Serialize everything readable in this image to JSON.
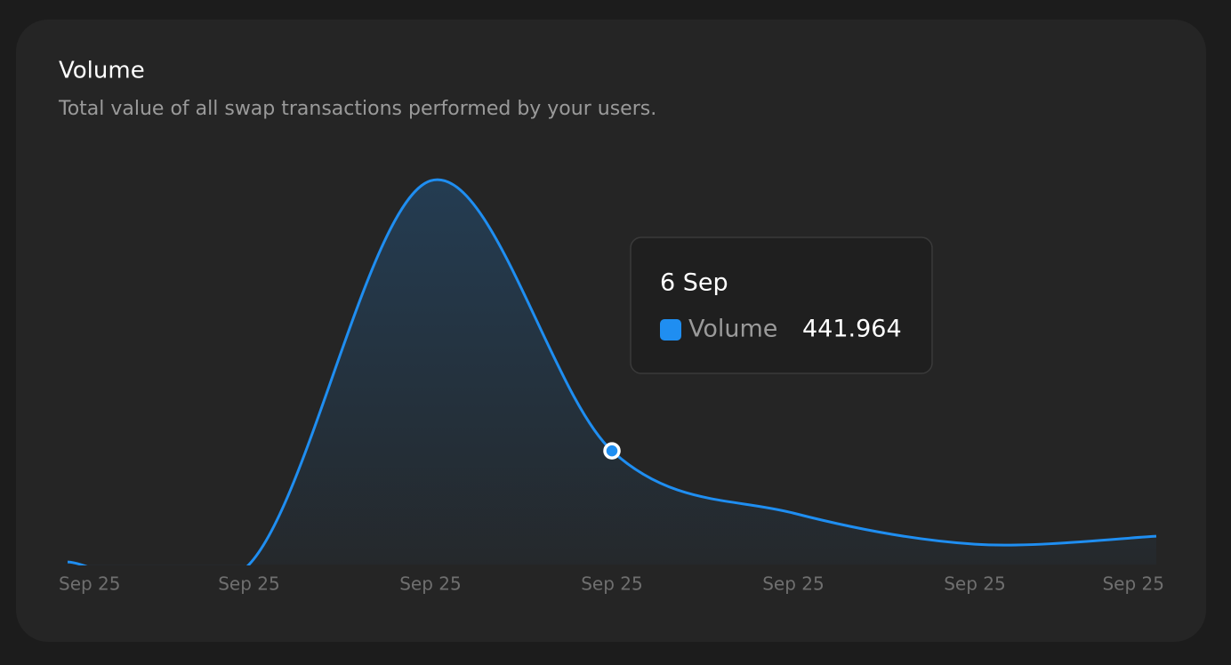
{
  "chart_data": {
    "type": "area",
    "title": "Volume",
    "subtitle": "Total value of all swap transactions performed by your users.",
    "categories": [
      "Sep 25",
      "Sep 25",
      "Sep 25",
      "Sep 25",
      "Sep 25",
      "Sep 25",
      "Sep 25"
    ],
    "series": [
      {
        "name": "Volume",
        "color": "#1f8ef1",
        "values": [
          10,
          0,
          1492,
          441.964,
          200,
          79,
          110
        ]
      }
    ],
    "ylim": [
      0,
      1500
    ],
    "highlight": 3,
    "tooltip_title": "6 Sep"
  }
}
